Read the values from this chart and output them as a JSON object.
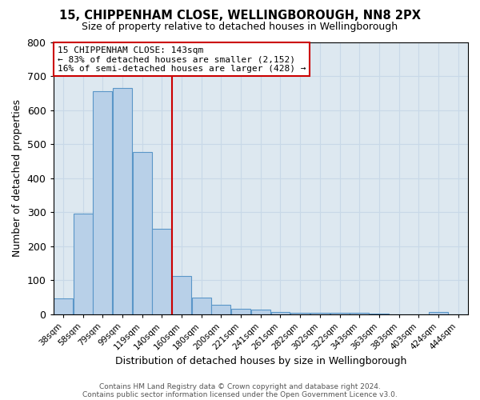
{
  "title": "15, CHIPPENHAM CLOSE, WELLINGBOROUGH, NN8 2PX",
  "subtitle": "Size of property relative to detached houses in Wellingborough",
  "xlabel": "Distribution of detached houses by size in Wellingborough",
  "ylabel": "Number of detached properties",
  "categories": [
    "38sqm",
    "58sqm",
    "79sqm",
    "99sqm",
    "119sqm",
    "140sqm",
    "160sqm",
    "180sqm",
    "200sqm",
    "221sqm",
    "241sqm",
    "261sqm",
    "282sqm",
    "302sqm",
    "322sqm",
    "343sqm",
    "363sqm",
    "383sqm",
    "403sqm",
    "424sqm",
    "444sqm"
  ],
  "values": [
    46,
    295,
    655,
    665,
    478,
    252,
    113,
    50,
    29,
    17,
    14,
    8,
    6,
    5,
    4,
    5,
    2,
    1,
    1,
    8,
    0
  ],
  "bar_color": "#b8d0e8",
  "bar_edge_color": "#5a96c8",
  "vline_color": "#cc0000",
  "annotation_line1": "15 CHIPPENHAM CLOSE: 143sqm",
  "annotation_line2": "← 83% of detached houses are smaller (2,152)",
  "annotation_line3": "16% of semi-detached houses are larger (428) →",
  "annotation_box_color": "#ffffff",
  "annotation_box_edge": "#cc0000",
  "ylim": [
    0,
    800
  ],
  "yticks": [
    0,
    100,
    200,
    300,
    400,
    500,
    600,
    700,
    800
  ],
  "background_color": "#dde8f0",
  "footer_line1": "Contains HM Land Registry data © Crown copyright and database right 2024.",
  "footer_line2": "Contains public sector information licensed under the Open Government Licence v3.0."
}
